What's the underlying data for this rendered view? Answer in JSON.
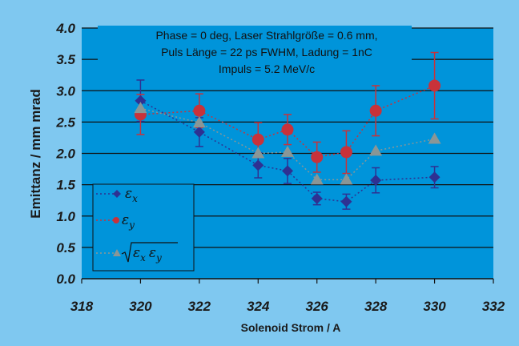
{
  "chart_data": {
    "type": "scatter",
    "xlabel": "Solenoid Strom / A",
    "ylabel": "Emittanz / mm mrad",
    "xlim": [
      318,
      332
    ],
    "ylim": [
      0.0,
      4.0
    ],
    "x_ticks": [
      "318",
      "320",
      "322",
      "324",
      "326",
      "328",
      "330",
      "332"
    ],
    "y_ticks": [
      "0.0",
      "0.5",
      "1.0",
      "1.5",
      "2.0",
      "2.5",
      "3.0",
      "3.5",
      "4.0"
    ],
    "grid": "horizontal",
    "annotation": [
      "Phase = 0 deg, Laser Strahlgröße = 0.6 mm,",
      "Puls Länge = 22 ps FWHM, Ladung = 1nC",
      "Impuls = 5.2 MeV/c"
    ],
    "legend_position": "bottom-left",
    "series": [
      {
        "name": "εx",
        "color": "#2e3192",
        "marker": "diamond",
        "line": "dotted",
        "points": [
          {
            "x": 320,
            "y": 2.84,
            "err": 0.33
          },
          {
            "x": 322,
            "y": 2.34,
            "err": 0.23
          },
          {
            "x": 324,
            "y": 1.81,
            "err": 0.2
          },
          {
            "x": 325,
            "y": 1.72,
            "err": 0.2
          },
          {
            "x": 326,
            "y": 1.28,
            "err": 0.1
          },
          {
            "x": 327,
            "y": 1.23,
            "err": 0.12
          },
          {
            "x": 328,
            "y": 1.57,
            "err": 0.2
          },
          {
            "x": 330,
            "y": 1.62,
            "err": 0.17
          }
        ]
      },
      {
        "name": "εy",
        "color": "#c8323a",
        "marker": "circle",
        "line": "dotted",
        "points": [
          {
            "x": 320,
            "y": 2.62,
            "err": 0.32
          },
          {
            "x": 322,
            "y": 2.68,
            "err": 0.27
          },
          {
            "x": 324,
            "y": 2.22,
            "err": 0.27
          },
          {
            "x": 325,
            "y": 2.38,
            "err": 0.24
          },
          {
            "x": 326,
            "y": 1.94,
            "err": 0.24
          },
          {
            "x": 327,
            "y": 2.02,
            "err": 0.34
          },
          {
            "x": 328,
            "y": 2.68,
            "err": 0.4
          },
          {
            "x": 330,
            "y": 3.08,
            "err": 0.53
          }
        ]
      },
      {
        "name": "√(εx εy)",
        "color": "#8a9696",
        "marker": "triangle",
        "line": "dotted",
        "points": [
          {
            "x": 320,
            "y": 2.72
          },
          {
            "x": 322,
            "y": 2.49
          },
          {
            "x": 324,
            "y": 2.0
          },
          {
            "x": 325,
            "y": 2.02
          },
          {
            "x": 326,
            "y": 1.58
          },
          {
            "x": 327,
            "y": 1.58
          },
          {
            "x": 328,
            "y": 2.04
          },
          {
            "x": 330,
            "y": 2.23
          }
        ]
      }
    ]
  },
  "legend": {
    "e_sym": "ε",
    "sub_x": "x",
    "sub_y": "y"
  }
}
